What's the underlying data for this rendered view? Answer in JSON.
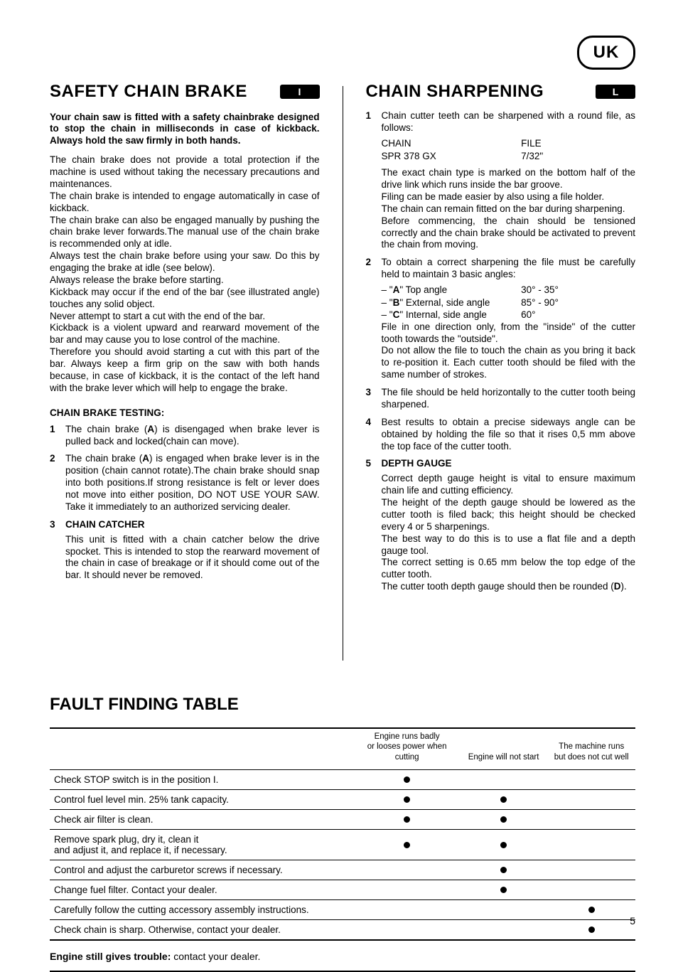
{
  "header": {
    "badge": "UK"
  },
  "left": {
    "title": "SAFETY CHAIN BRAKE",
    "badge": "I",
    "intro": "Your chain saw is fitted with a safety chainbrake designed to stop the chain in milliseconds in case of kickback. Always hold the saw firmly in both hands.",
    "paras": [
      "The chain brake does not provide a total protection if the machine is used without taking the necessary precautions and maintenances.",
      "The chain brake is intended to engage automatically in case of kickback.",
      "The chain brake can also be engaged manually by pushing the chain brake lever forwards.The manual use of the chain brake is recommended only at idle.",
      "Always test the chain brake before using your saw. Do this by engaging the brake at idle (see below).",
      "Always release the brake before starting.",
      "Kickback may occur if the end of the bar (see illustrated angle) touches any solid object.",
      "Never attempt to start a cut with the end of the bar.",
      "Kickback is a violent upward and rearward movement of the bar and may cause you to lose control of the machine.",
      "Therefore you should avoid starting a cut with this part of the bar. Always keep a firm grip on the saw with both hands because, in case of kickback, it is the contact of the left hand with the brake lever which will help to engage the brake."
    ],
    "subhead": "CHAIN BRAKE TESTING:",
    "items": [
      {
        "num": "1",
        "html": "The chain brake (<b>A</b>) is disengaged when brake lever is pulled back and locked(chain can move)."
      },
      {
        "num": "2",
        "html": "The chain brake (<b>A</b>) is engaged when brake lever is in the position (chain cannot rotate).The chain brake should snap into both positions.If strong resistance is felt or lever does not move into either position, DO NOT USE YOUR SAW. Take it immediately to an authorized servicing dealer."
      },
      {
        "num": "3",
        "head": "CHAIN CATCHER",
        "html": "This unit is fitted with a chain catcher below the drive spocket. This is intended to stop the rearward movement of the chain in case of breakage or if it should come out of the bar. It should never be removed."
      }
    ]
  },
  "right": {
    "title": "CHAIN SHARPENING",
    "badge": "L",
    "items": [
      {
        "num": "1",
        "intro": "Chain cutter teeth can be sharpened with a round file, as follows:",
        "rows": [
          {
            "c1": "CHAIN",
            "c2": "FILE"
          },
          {
            "c1": "SPR 378 GX",
            "c2": "7/32\""
          }
        ],
        "paras": [
          "The exact chain type is marked on the bottom half of the drive link which runs inside the bar groove.",
          "Filing can be made easier by also using a file holder.",
          "The chain can remain fitted on the bar during sharpening.",
          "Before commencing, the chain should be tensioned correctly and the chain brake should be activated to prevent the chain from moving."
        ]
      },
      {
        "num": "2",
        "intro": "To obtain a correct sharpening the file must be carefully held to maintain 3 basic angles:",
        "angles": [
          {
            "label": "– \"<b>A</b>\" Top angle",
            "val": "30° - 35°"
          },
          {
            "label": "– \"<b>B</b>\" External, side angle",
            "val": "85° - 90°"
          },
          {
            "label": "– \"<b>C</b>\" Internal,  side angle",
            "val": "60°"
          }
        ],
        "paras": [
          "File in one direction only, from the \"inside\" of the cutter tooth towards the \"outside\".",
          "Do not allow the file to touch the chain as you bring it back to re-position it. Each cutter tooth should be filed with the same number of strokes."
        ]
      },
      {
        "num": "3",
        "html": "The file should be held horizontally to the cutter tooth being sharpened."
      },
      {
        "num": "4",
        "html": "Best results to obtain a precise sideways angle can be obtained by holding the file so that it rises 0,5 mm above the top face of the cutter tooth."
      },
      {
        "num": "5",
        "head": "DEPTH GAUGE",
        "paras": [
          "Correct depth gauge height is vital to ensure maximum chain life and cutting efficiency.",
          "The height of the depth gauge should be lowered as the cutter tooth is filed back; this height should be checked every 4 or 5 sharpenings.",
          "The best way to do this is to use a flat file and a depth gauge tool.",
          "The correct setting is 0.65 mm below the top edge of the cutter tooth.",
          "The cutter tooth depth gauge should then be rounded (<b>D</b>)."
        ]
      }
    ]
  },
  "table": {
    "title": "FAULT FINDING TABLE",
    "columns": [
      "",
      "Engine runs badly\nor looses power when cutting",
      "Engine will not start",
      "The machine runs\nbut does not cut well"
    ],
    "col_widths": [
      "52%",
      "18%",
      "15%",
      "15%"
    ],
    "rows": [
      {
        "label": "Check STOP switch is in the position I.",
        "marks": [
          true,
          false,
          false
        ]
      },
      {
        "label": "Control fuel level min. 25% tank capacity.",
        "marks": [
          true,
          true,
          false
        ]
      },
      {
        "label": "Check air filter is clean.",
        "marks": [
          true,
          true,
          false
        ]
      },
      {
        "label": "Remove spark plug, dry it, clean it\nand adjust it, and replace it, if necessary.",
        "marks": [
          true,
          true,
          false
        ]
      },
      {
        "label": "Control and adjust the carburetor screws if necessary.",
        "marks": [
          false,
          true,
          false
        ]
      },
      {
        "label": "Change fuel filter. Contact your dealer.",
        "marks": [
          false,
          true,
          false
        ]
      },
      {
        "label": "Carefully follow the cutting accessory assembly instructions.",
        "marks": [
          false,
          false,
          true
        ]
      },
      {
        "label": "Check chain is sharp. Otherwise, contact your dealer.",
        "marks": [
          false,
          false,
          true
        ]
      }
    ],
    "note_bold": "Engine still gives trouble:",
    "note_rest": " contact your dealer."
  },
  "page_number": "5"
}
